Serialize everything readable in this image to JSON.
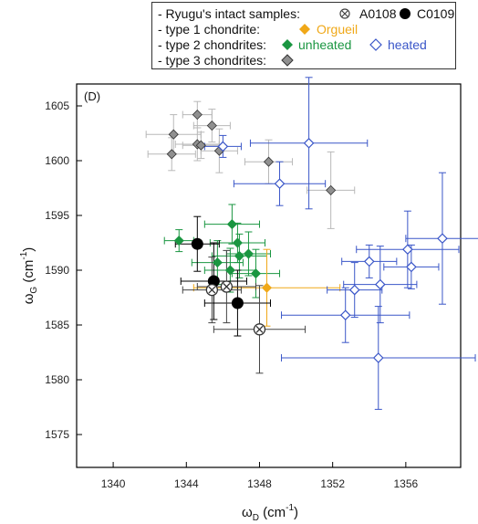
{
  "legend": {
    "row1_label": "- Ryugu's intact samples:",
    "a0108": "A0108",
    "c0109": "C0109",
    "row2_label": "- type 1 chondrite:",
    "orgueil": "Orgueil",
    "row3_label": "- type 2 chondrites:",
    "unheated": "unheated",
    "heated": "heated",
    "row4_label": "- type 3 chondrites:"
  },
  "colors": {
    "orgueil": "#f0a818",
    "unheated": "#1a9641",
    "heated": "#3a56c8",
    "type3": "#909090",
    "type3_err": "#b8b8b8",
    "c0109": "#000000",
    "a0108_err": "#444444"
  },
  "chart_data": {
    "type": "scatter",
    "panel_label": "(D)",
    "xlabel_main": "ω",
    "xlabel_sub": "D",
    "xlabel_unit": " (cm",
    "xlabel_sup": "-1",
    "xlabel_end": ")",
    "ylabel_main": "ω",
    "ylabel_sub": "G",
    "ylabel_unit": " (cm",
    "ylabel_sup": "-1",
    "ylabel_end": ")",
    "xlim": [
      1338,
      1359
    ],
    "ylim": [
      1572,
      1607
    ],
    "xticks": [
      1340,
      1344,
      1348,
      1352,
      1356
    ],
    "yticks": [
      1575,
      1580,
      1585,
      1590,
      1595,
      1600,
      1605
    ],
    "series": [
      {
        "name": "type 3 chondrites",
        "marker": "diamond",
        "fill": "#909090",
        "stroke": "#333",
        "err": "#b8b8b8",
        "points": [
          {
            "x": 1344.6,
            "y": 1604.2,
            "xe": 0.8,
            "ye": 1.2
          },
          {
            "x": 1345.4,
            "y": 1603.2,
            "xe": 1.0,
            "ye": 1.5
          },
          {
            "x": 1343.3,
            "y": 1602.4,
            "xe": 1.5,
            "ye": 1.8
          },
          {
            "x": 1344.6,
            "y": 1601.5,
            "xe": 1.2,
            "ye": 1.5
          },
          {
            "x": 1344.8,
            "y": 1601.4,
            "xe": 1.0,
            "ye": 1.2
          },
          {
            "x": 1345.8,
            "y": 1600.9,
            "xe": 1.0,
            "ye": 2.0
          },
          {
            "x": 1343.2,
            "y": 1600.6,
            "xe": 1.3,
            "ye": 1.5
          },
          {
            "x": 1348.5,
            "y": 1599.9,
            "xe": 1.3,
            "ye": 2.0
          },
          {
            "x": 1351.9,
            "y": 1597.3,
            "xe": 1.3,
            "ye": 3.5
          }
        ]
      },
      {
        "name": "unheated",
        "marker": "diamond",
        "fill": "#1a9641",
        "stroke": "#1a9641",
        "err": "#1a9641",
        "points": [
          {
            "x": 1346.5,
            "y": 1594.2,
            "xe": 1.5,
            "ye": 1.8
          },
          {
            "x": 1343.6,
            "y": 1592.7,
            "xe": 0.8,
            "ye": 1.0
          },
          {
            "x": 1346.8,
            "y": 1592.5,
            "xe": 1.5,
            "ye": 1.8
          },
          {
            "x": 1346.9,
            "y": 1591.3,
            "xe": 1.5,
            "ye": 2.0
          },
          {
            "x": 1347.4,
            "y": 1591.5,
            "xe": 1.2,
            "ye": 2.0
          },
          {
            "x": 1345.7,
            "y": 1590.7,
            "xe": 1.4,
            "ye": 2.0
          },
          {
            "x": 1346.4,
            "y": 1590.0,
            "xe": 1.4,
            "ye": 2.0
          },
          {
            "x": 1347.8,
            "y": 1589.7,
            "xe": 1.3,
            "ye": 2.2
          }
        ]
      },
      {
        "name": "Orgueil",
        "marker": "diamond",
        "fill": "#f0a818",
        "stroke": "#f0a818",
        "err": "#f0a818",
        "points": [
          {
            "x": 1348.4,
            "y": 1588.4,
            "xe": 4.0,
            "ye": 3.5
          }
        ]
      },
      {
        "name": "heated",
        "marker": "diamond-open",
        "fill": "#ffffff",
        "stroke": "#3a56c8",
        "err": "#3a56c8",
        "points": [
          {
            "x": 1350.7,
            "y": 1601.6,
            "xe": 3.2,
            "ye": 6.0
          },
          {
            "x": 1346.0,
            "y": 1601.3,
            "xe": 1.0,
            "ye": 1.0
          },
          {
            "x": 1349.1,
            "y": 1597.9,
            "xe": 2.5,
            "ye": 2.0
          },
          {
            "x": 1358.0,
            "y": 1592.9,
            "xe": 2.0,
            "ye": 6.0
          },
          {
            "x": 1356.1,
            "y": 1591.9,
            "xe": 2.8,
            "ye": 3.5
          },
          {
            "x": 1354.0,
            "y": 1590.8,
            "xe": 1.5,
            "ye": 1.5
          },
          {
            "x": 1356.3,
            "y": 1590.3,
            "xe": 1.5,
            "ye": 2.0
          },
          {
            "x": 1354.6,
            "y": 1588.7,
            "xe": 2.0,
            "ye": 3.5
          },
          {
            "x": 1353.2,
            "y": 1588.2,
            "xe": 1.5,
            "ye": 2.5
          },
          {
            "x": 1352.7,
            "y": 1585.9,
            "xe": 3.5,
            "ye": 2.5
          },
          {
            "x": 1354.5,
            "y": 1582.0,
            "xe": 5.3,
            "ye": 4.7
          }
        ]
      },
      {
        "name": "C0109",
        "marker": "circle",
        "fill": "#000000",
        "stroke": "#000000",
        "err": "#000000",
        "points": [
          {
            "x": 1344.6,
            "y": 1592.4,
            "xe": 1.2,
            "ye": 2.5
          },
          {
            "x": 1345.5,
            "y": 1589.0,
            "xe": 1.8,
            "ye": 3.5
          },
          {
            "x": 1346.8,
            "y": 1587.0,
            "xe": 1.8,
            "ye": 3.0
          }
        ]
      },
      {
        "name": "A0108",
        "marker": "circle-x",
        "fill": "#ffffff",
        "stroke": "#333333",
        "err": "#444444",
        "points": [
          {
            "x": 1346.2,
            "y": 1588.5,
            "xe": 1.6,
            "ye": 3.3
          },
          {
            "x": 1345.4,
            "y": 1588.2,
            "xe": 1.6,
            "ye": 3.0
          },
          {
            "x": 1348.0,
            "y": 1584.6,
            "xe": 2.5,
            "ye": 4.0
          }
        ]
      }
    ]
  }
}
